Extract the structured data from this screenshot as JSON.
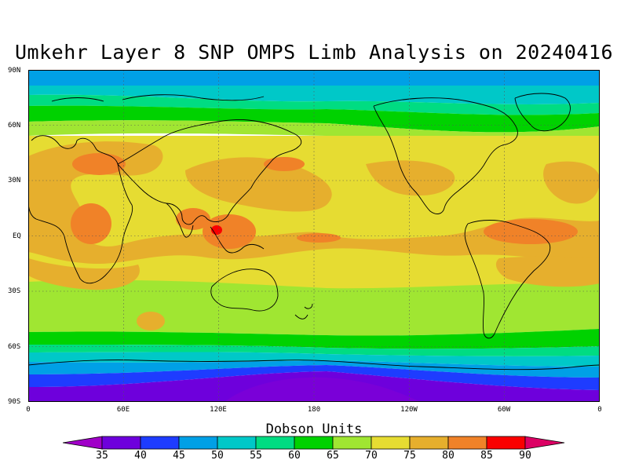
{
  "title": "Umkehr Layer 8 SNP OMPS Limb Analysis on 20240416",
  "lat_labels": [
    "90N",
    "60N",
    "30N",
    "EQ",
    "30S",
    "60S",
    "90S"
  ],
  "lon_labels": [
    "0",
    "60E",
    "120E",
    "180",
    "120W",
    "60W",
    "0"
  ],
  "colorbar": {
    "title": "Dobson Units",
    "levels": [
      "35",
      "40",
      "45",
      "50",
      "55",
      "60",
      "65",
      "70",
      "75",
      "80",
      "85",
      "90"
    ],
    "colors": [
      "#a000c8",
      "#6e00dc",
      "#1e3cff",
      "#00a0e6",
      "#00c8c8",
      "#00dc82",
      "#00d200",
      "#a0e632",
      "#e6dc32",
      "#e6af2d",
      "#f08228",
      "#fa0000",
      "#dc0064"
    ]
  }
}
